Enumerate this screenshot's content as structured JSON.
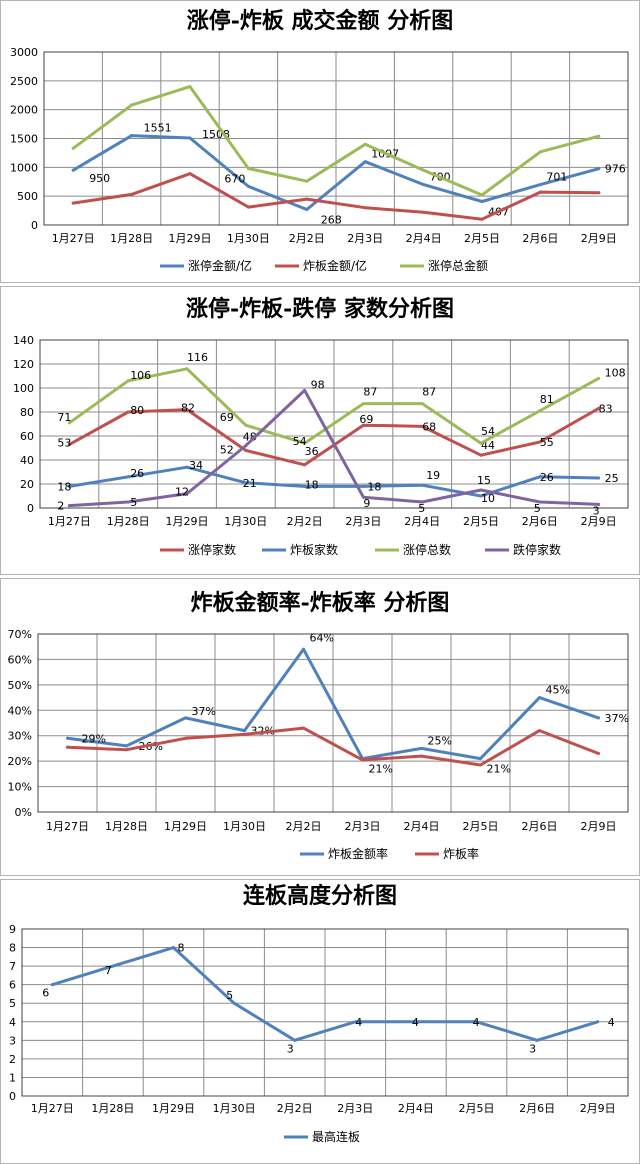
{
  "colors": {
    "blue": "#4f81bd",
    "red": "#c0504d",
    "green": "#9bbb59",
    "purple": "#8064a2",
    "grid": "#8c8c8c",
    "border": "#000000"
  },
  "categories": [
    "1月27日",
    "1月28日",
    "1月29日",
    "1月30日",
    "2月2日",
    "2月3日",
    "2月4日",
    "2月5日",
    "2月6日",
    "2月9日"
  ],
  "chart_data": [
    {
      "type": "line",
      "title": "涨停-炸板 成交金额 分析图",
      "ylim": [
        0,
        3000
      ],
      "yticks": [
        "0",
        "500",
        "1000",
        "1500",
        "2000",
        "2500",
        "3000"
      ],
      "legend_position": "bottom",
      "grid": true,
      "series": [
        {
          "name": "涨停金额/亿",
          "color": "#4f81bd",
          "values": [
            950,
            1551,
            1508,
            670,
            268,
            1097,
            700,
            407,
            701,
            976
          ],
          "labels": [
            "950",
            "1551",
            "1508",
            "670",
            "268",
            "1097",
            "700",
            "407",
            "701",
            "976"
          ]
        },
        {
          "name": "炸板金额/亿",
          "color": "#c0504d",
          "values": [
            380,
            530,
            890,
            310,
            450,
            300,
            220,
            100,
            570,
            560
          ],
          "labels": [
            "",
            "",
            "",
            "",
            "",
            "",
            "",
            "",
            "",
            ""
          ]
        },
        {
          "name": "涨停总金额",
          "color": "#9bbb59",
          "values": [
            1330,
            2080,
            2400,
            980,
            760,
            1400,
            950,
            520,
            1270,
            1540
          ],
          "labels": [
            "",
            "",
            "",
            "",
            "",
            "",
            "",
            "",
            "",
            ""
          ]
        }
      ]
    },
    {
      "type": "line",
      "title": "涨停-炸板-跌停 家数分析图",
      "ylim": [
        0,
        140
      ],
      "yticks": [
        "0",
        "20",
        "40",
        "60",
        "80",
        "100",
        "120",
        "140"
      ],
      "legend_position": "bottom",
      "grid": true,
      "series": [
        {
          "name": "涨停家数",
          "color": "#c0504d",
          "values": [
            53,
            80,
            82,
            48,
            36,
            69,
            68,
            44,
            55,
            83
          ],
          "labels": [
            "53",
            "80",
            "82",
            "48",
            "36",
            "69",
            "68",
            "44",
            "55",
            "83"
          ]
        },
        {
          "name": "炸板家数",
          "color": "#4f81bd",
          "values": [
            18,
            26,
            34,
            21,
            18,
            18,
            19,
            10,
            26,
            25
          ],
          "labels": [
            "18",
            "26",
            "34",
            "21",
            "18",
            "18",
            "19",
            "10",
            "26",
            "25"
          ]
        },
        {
          "name": "涨停总数",
          "color": "#9bbb59",
          "values": [
            71,
            106,
            116,
            69,
            54,
            87,
            87,
            54,
            81,
            108
          ],
          "labels": [
            "71",
            "106",
            "116",
            "69",
            "54",
            "87",
            "87",
            "54",
            "81",
            "108"
          ]
        },
        {
          "name": "跌停家数",
          "color": "#8064a2",
          "values": [
            2,
            5,
            12,
            52,
            98,
            9,
            5,
            15,
            5,
            3
          ],
          "labels": [
            "2",
            "5",
            "12",
            "52",
            "98",
            "9",
            "5",
            "15",
            "5",
            "3"
          ]
        }
      ]
    },
    {
      "type": "line",
      "title": "炸板金额率-炸板率 分析图",
      "ylim": [
        0,
        70
      ],
      "yticks": [
        "0%",
        "10%",
        "20%",
        "30%",
        "40%",
        "50%",
        "60%",
        "70%"
      ],
      "legend_position": "bottom",
      "grid": true,
      "series": [
        {
          "name": "炸板金额率",
          "color": "#4f81bd",
          "values": [
            29,
            26,
            37,
            32,
            64,
            21,
            25,
            21,
            45,
            37
          ],
          "labels": [
            "29%",
            "26%",
            "37%",
            "32%",
            "64%",
            "21%",
            "25%",
            "21%",
            "45%",
            "37%"
          ]
        },
        {
          "name": "炸板率",
          "color": "#c0504d",
          "values": [
            25.5,
            24.5,
            29,
            30.5,
            33,
            20.5,
            22,
            18.5,
            32,
            23
          ],
          "labels": [
            "",
            "",
            "",
            "",
            "",
            "",
            "",
            "",
            "",
            ""
          ]
        }
      ]
    },
    {
      "type": "line",
      "title": "连板高度分析图",
      "ylim": [
        0,
        9
      ],
      "yticks": [
        "0",
        "1",
        "2",
        "3",
        "4",
        "5",
        "6",
        "7",
        "8",
        "9"
      ],
      "legend_position": "bottom",
      "grid": true,
      "series": [
        {
          "name": "最高连板",
          "color": "#4f81bd",
          "values": [
            6,
            7,
            8,
            5,
            3,
            4,
            4,
            4,
            3,
            4
          ],
          "labels": [
            "6",
            "7",
            "8",
            "5",
            "3",
            "4",
            "4",
            "4",
            "3",
            "4"
          ]
        }
      ]
    }
  ]
}
